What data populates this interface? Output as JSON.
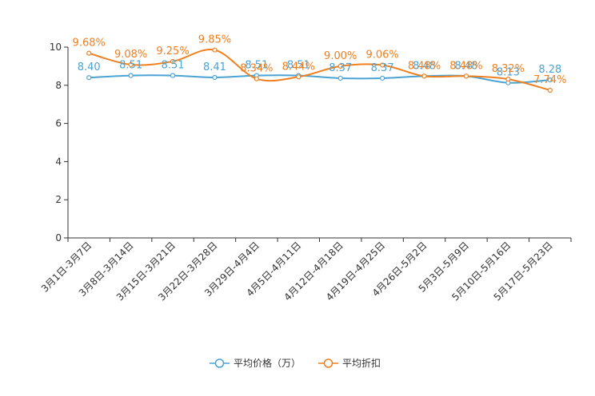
{
  "chart_data": {
    "type": "line",
    "title": "",
    "xlabel": "",
    "ylabel": "",
    "ylim": [
      0,
      10
    ],
    "yticks": [
      0,
      2,
      4,
      6,
      8,
      10
    ],
    "grid": false,
    "legend_position": "bottom-center",
    "categories": [
      "3月1日-3月7日",
      "3月8日-3月14日",
      "3月15日-3月21日",
      "3月22日-3月28日",
      "3月29日-4月4日",
      "4月5日-4月11日",
      "4月12日-4月18日",
      "4月19日-4月25日",
      "4月26日-5月2日",
      "5月3日-5月9日",
      "5月10日-5月16日",
      "5月17日-5月23日"
    ],
    "series": [
      {
        "name": "平均价格（万）",
        "color": "#4aa3d2",
        "values": [
          8.4,
          8.51,
          8.51,
          8.41,
          8.51,
          8.51,
          8.37,
          8.37,
          8.48,
          8.48,
          8.13,
          8.28
        ],
        "labels": [
          "8.40",
          "8.51",
          "8.51",
          "8.41",
          "8.51",
          "8.51",
          "8.37",
          "8.37",
          "8.48",
          "8.48",
          "8.13",
          "8.28"
        ]
      },
      {
        "name": "平均折扣",
        "color": "#f07f1f",
        "values": [
          9.68,
          9.08,
          9.25,
          9.85,
          8.34,
          8.44,
          9.0,
          9.06,
          8.48,
          8.48,
          8.32,
          7.74
        ],
        "labels": [
          "9.68%",
          "9.08%",
          "9.25%",
          "9.85%",
          "8.34%",
          "8.44%",
          "9.00%",
          "9.06%",
          "8.48%",
          "8.48%",
          "8.32%",
          "7.74%"
        ]
      }
    ]
  }
}
